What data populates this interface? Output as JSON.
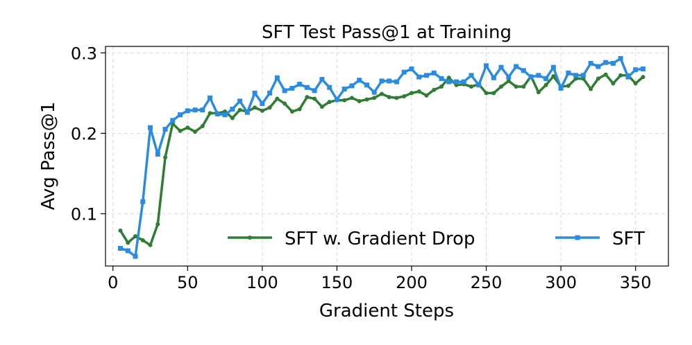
{
  "chart_data": {
    "type": "line",
    "title": "SFT Test Pass@1 at Training",
    "xlabel": "Gradient Steps",
    "ylabel": "Avg Pass@1",
    "xlim": [
      -5,
      372
    ],
    "ylim": [
      0.035,
      0.308
    ],
    "xticks": [
      0,
      50,
      100,
      150,
      200,
      250,
      300,
      350
    ],
    "yticks": [
      0.1,
      0.2,
      0.3
    ],
    "xtick_labels": [
      "0",
      "50",
      "100",
      "150",
      "200",
      "250",
      "300",
      "350"
    ],
    "ytick_labels": [
      "0.1",
      "0.2",
      "0.3"
    ],
    "grid": true,
    "legend_position": "lower-right",
    "x": [
      5,
      10,
      15,
      20,
      25,
      30,
      35,
      40,
      45,
      50,
      55,
      60,
      65,
      70,
      75,
      80,
      85,
      90,
      95,
      100,
      105,
      110,
      115,
      120,
      125,
      130,
      135,
      140,
      145,
      150,
      155,
      160,
      165,
      170,
      175,
      180,
      185,
      190,
      195,
      200,
      205,
      210,
      215,
      220,
      225,
      230,
      235,
      240,
      245,
      250,
      255,
      260,
      265,
      270,
      275,
      280,
      285,
      290,
      295,
      300,
      305,
      310,
      315,
      320,
      325,
      330,
      335,
      340,
      345,
      350,
      355
    ],
    "series": [
      {
        "name": "SFT w. Gradient Drop",
        "color": "#2e7d32",
        "marker": "circle",
        "values": [
          0.079,
          0.064,
          0.072,
          0.067,
          0.061,
          0.087,
          0.17,
          0.212,
          0.203,
          0.207,
          0.202,
          0.209,
          0.225,
          0.225,
          0.227,
          0.219,
          0.229,
          0.227,
          0.232,
          0.228,
          0.232,
          0.243,
          0.237,
          0.227,
          0.23,
          0.245,
          0.243,
          0.233,
          0.239,
          0.241,
          0.241,
          0.244,
          0.24,
          0.242,
          0.244,
          0.249,
          0.245,
          0.244,
          0.246,
          0.25,
          0.252,
          0.247,
          0.254,
          0.258,
          0.269,
          0.26,
          0.261,
          0.258,
          0.261,
          0.25,
          0.25,
          0.258,
          0.265,
          0.258,
          0.258,
          0.271,
          0.251,
          0.26,
          0.271,
          0.258,
          0.259,
          0.268,
          0.268,
          0.255,
          0.268,
          0.273,
          0.262,
          0.272,
          0.272,
          0.262,
          0.27
        ]
      },
      {
        "name": "SFT",
        "color": "#2a8ce0",
        "marker": "square",
        "values": [
          0.057,
          0.054,
          0.047,
          0.115,
          0.207,
          0.174,
          0.205,
          0.216,
          0.223,
          0.228,
          0.229,
          0.229,
          0.244,
          0.224,
          0.223,
          0.23,
          0.24,
          0.226,
          0.25,
          0.237,
          0.25,
          0.269,
          0.253,
          0.256,
          0.261,
          0.257,
          0.253,
          0.267,
          0.257,
          0.242,
          0.255,
          0.259,
          0.266,
          0.26,
          0.251,
          0.265,
          0.265,
          0.264,
          0.276,
          0.28,
          0.27,
          0.272,
          0.275,
          0.268,
          0.264,
          0.264,
          0.264,
          0.272,
          0.26,
          0.284,
          0.269,
          0.282,
          0.27,
          0.283,
          0.278,
          0.27,
          0.272,
          0.268,
          0.282,
          0.256,
          0.275,
          0.272,
          0.272,
          0.287,
          0.283,
          0.288,
          0.287,
          0.293,
          0.27,
          0.279,
          0.28
        ]
      }
    ]
  }
}
